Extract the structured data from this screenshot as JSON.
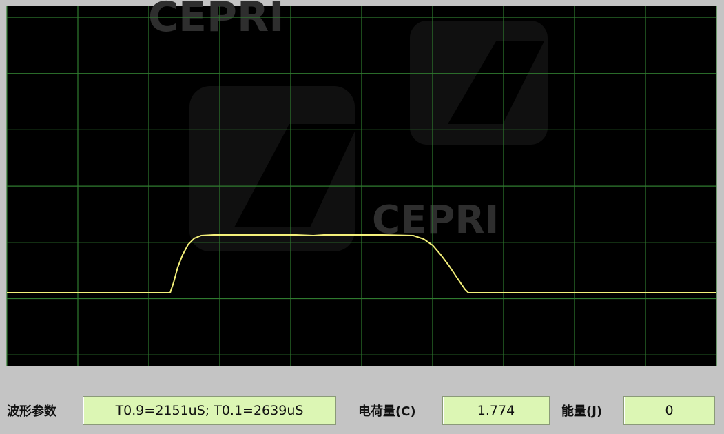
{
  "display": {
    "watermark": [
      "CEPRI",
      "CEPRI"
    ]
  },
  "fields": [
    {
      "label": "波形参数",
      "value": "T0.9=2151uS; T0.1=2639uS"
    },
    {
      "label": "电荷量(C)",
      "value": "1.774"
    },
    {
      "label": "能量(J)",
      "value": "0"
    }
  ]
}
